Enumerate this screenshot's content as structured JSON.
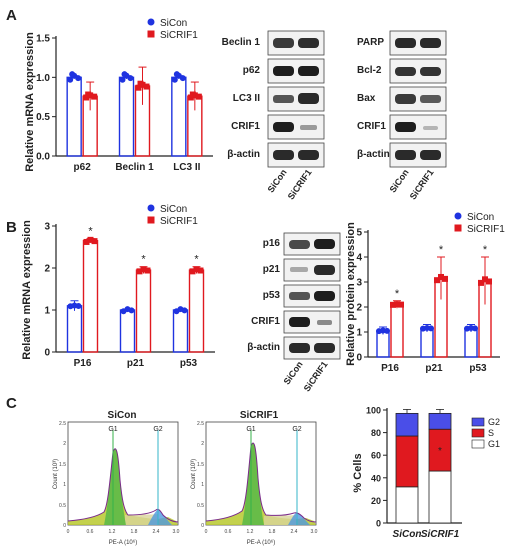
{
  "figure": {
    "panel_labels": [
      "A",
      "B",
      "C"
    ],
    "significance_marker": "*"
  },
  "colors": {
    "sicon": "#1f33e0",
    "sicrif1": "#e0191f",
    "axis": "#222222",
    "g2": "#4a4ee8",
    "s": "#e0191f",
    "g1": "#ffffff"
  },
  "legend": {
    "sicon": "SiCon",
    "sicrif1": "SiCRIF1"
  },
  "blot_labels": {
    "sicon": "SiCon",
    "sicrif1": "SiCRIF1"
  },
  "blots": {
    "A_autophagy": [
      "Beclin 1",
      "p62",
      "LC3 II",
      "CRIF1",
      "β-actin"
    ],
    "A_apoptosis": [
      "PARP",
      "Bcl-2",
      "Bax",
      "CRIF1",
      "β-actin"
    ],
    "B_senescence": [
      "p16",
      "p21",
      "p53",
      "CRIF1",
      "β-actin"
    ]
  },
  "flow": {
    "left_title": "SiCon",
    "right_title": "SiCRIF1",
    "gate_labels": [
      "G1",
      "G2"
    ],
    "ylabel": "Count (10³)",
    "xlabel": "PE-A (10⁶)",
    "yticks": [
      "0",
      "0.5",
      "1",
      "1.5",
      "2",
      "2.5"
    ],
    "xticks": [
      "0",
      "0.6",
      "1.2",
      "1.8",
      "2.4",
      "3.0"
    ]
  },
  "chart_data": [
    {
      "id": "A_mrna",
      "type": "bar",
      "ylabel": "Relative mRNA expression",
      "categories": [
        "p62",
        "Beclin 1",
        "LC3 II"
      ],
      "ylim": [
        0,
        1.5
      ],
      "yticks": [
        0.0,
        0.5,
        1.0,
        1.5
      ],
      "yticklabels": [
        "0.0",
        "0.5",
        "1.0",
        "1.5"
      ],
      "series": [
        {
          "name": "SiCon",
          "values": [
            1.0,
            1.0,
            1.0
          ],
          "errors": [
            0.02,
            0.02,
            0.02
          ]
        },
        {
          "name": "SiCRIF1",
          "values": [
            0.76,
            0.89,
            0.76
          ],
          "errors": [
            0.18,
            0.24,
            0.18
          ]
        }
      ]
    },
    {
      "id": "B_mrna",
      "type": "bar",
      "ylabel": "Relative mRNA expression",
      "categories": [
        "P16",
        "p21",
        "p53"
      ],
      "ylim": [
        0,
        3
      ],
      "yticks": [
        0,
        1,
        2,
        3
      ],
      "yticklabels": [
        "0",
        "1",
        "2",
        "3"
      ],
      "significant": [
        true,
        true,
        true
      ],
      "series": [
        {
          "name": "SiCon",
          "values": [
            1.1,
            1.0,
            1.0
          ],
          "errors": [
            0.12,
            0.02,
            0.02
          ]
        },
        {
          "name": "SiCRIF1",
          "values": [
            2.65,
            1.95,
            1.95
          ],
          "errors": [
            0.05,
            0.08,
            0.08
          ]
        }
      ]
    },
    {
      "id": "B_protein",
      "type": "bar",
      "ylabel": "Relative protein expression",
      "categories": [
        "P16",
        "p21",
        "p53"
      ],
      "ylim": [
        0,
        5
      ],
      "yticks": [
        0,
        1,
        2,
        3,
        4,
        5
      ],
      "yticklabels": [
        "0",
        "1",
        "2",
        "3",
        "4",
        "5"
      ],
      "significant": [
        true,
        true,
        true
      ],
      "series": [
        {
          "name": "SiCon",
          "values": [
            1.05,
            1.15,
            1.15
          ],
          "errors": [
            0.15,
            0.15,
            0.15
          ]
        },
        {
          "name": "SiCRIF1",
          "values": [
            2.1,
            3.15,
            3.05
          ],
          "errors": [
            0.15,
            0.85,
            0.95
          ]
        }
      ]
    },
    {
      "id": "C_cellcycle",
      "type": "bar",
      "stacked": true,
      "ylabel": "% Cells",
      "categories": [
        "SiCon",
        "SiCRIF1"
      ],
      "ylim": [
        0,
        100
      ],
      "yticks": [
        0,
        20,
        40,
        60,
        80,
        100
      ],
      "yticklabels": [
        "0",
        "20",
        "40",
        "60",
        "80",
        "100"
      ],
      "legend_order": [
        "G2",
        "S",
        "G1"
      ],
      "significant_segment": [
        null,
        "S"
      ],
      "series": [
        {
          "name": "G1",
          "values": [
            32,
            46
          ]
        },
        {
          "name": "S",
          "values": [
            45,
            37
          ]
        },
        {
          "name": "G2",
          "values": [
            20,
            14
          ]
        }
      ]
    }
  ]
}
